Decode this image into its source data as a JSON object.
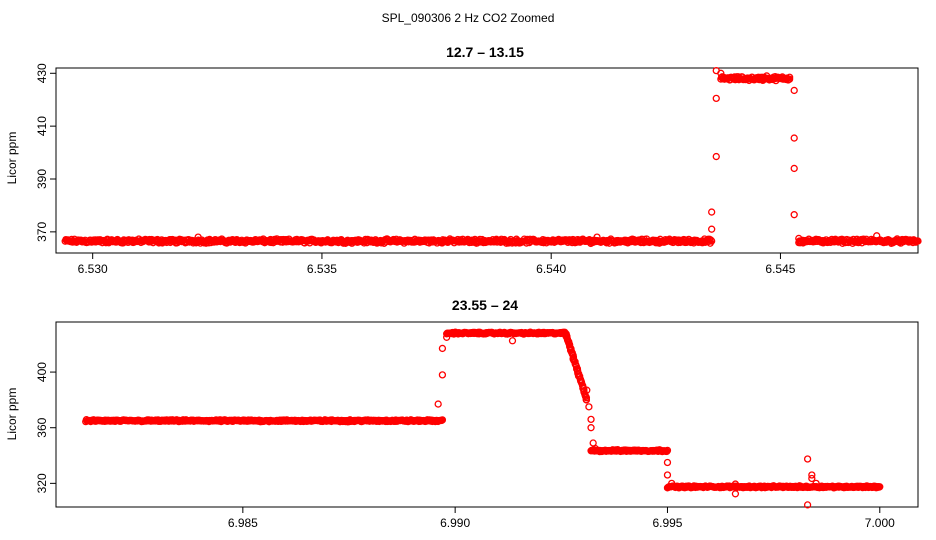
{
  "figure": {
    "title": "SPL_090306  2 Hz CO2 Zoomed",
    "point_color": "#ff0000"
  },
  "chart_data": [
    {
      "type": "scatter",
      "title": "12.7 – 13.15",
      "xlabel": "",
      "ylabel": "Licor ppm",
      "xlim": [
        6.5292,
        6.548
      ],
      "ylim": [
        362,
        432
      ],
      "xticks": [
        6.53,
        6.535,
        6.54,
        6.545
      ],
      "xtick_labels": [
        "6.530",
        "6.535",
        "6.540",
        "6.545"
      ],
      "yticks": [
        370,
        390,
        410,
        430
      ],
      "ytick_labels": [
        "370",
        "390",
        "410",
        "430"
      ],
      "grid": false,
      "marker": "open-circle",
      "segments": [
        {
          "x0": 6.5294,
          "x1": 6.5435,
          "y": 366.5,
          "noise": 0.9
        },
        {
          "x0": 6.5437,
          "x1": 6.5452,
          "y": 428.0,
          "noise": 0.9
        },
        {
          "x0": 6.5454,
          "x1": 6.548,
          "y": 366.5,
          "noise": 0.9
        }
      ],
      "points": [
        [
          6.5435,
          371.0
        ],
        [
          6.5435,
          377.5
        ],
        [
          6.5436,
          398.5
        ],
        [
          6.5436,
          420.5
        ],
        [
          6.5436,
          431.0
        ],
        [
          6.5437,
          430.0
        ],
        [
          6.5452,
          428.5
        ],
        [
          6.5453,
          423.5
        ],
        [
          6.5453,
          405.5
        ],
        [
          6.5453,
          394.0
        ],
        [
          6.5453,
          376.5
        ],
        [
          6.5454,
          367.5
        ],
        [
          6.5323,
          368.0
        ],
        [
          6.541,
          368.0
        ],
        [
          6.5471,
          368.5
        ],
        [
          6.5447,
          429.0
        ]
      ]
    },
    {
      "type": "scatter",
      "title": "23.55 – 24",
      "xlabel": "",
      "ylabel": "Licor ppm",
      "xlim": [
        6.9806,
        7.0009
      ],
      "ylim": [
        303,
        436
      ],
      "xticks": [
        6.985,
        6.99,
        6.995,
        7.0
      ],
      "xtick_labels": [
        "6.985",
        "6.990",
        "6.995",
        "7.000"
      ],
      "yticks": [
        320,
        360,
        400
      ],
      "ytick_labels": [
        "320",
        "360",
        "400"
      ],
      "grid": false,
      "marker": "open-circle",
      "segments": [
        {
          "x0": 6.9813,
          "x1": 6.9897,
          "y": 365.0,
          "noise": 0.8
        },
        {
          "x0": 6.9898,
          "x1": 6.9926,
          "y": 428.0,
          "noise": 0.8
        },
        {
          "x0": 6.9932,
          "x1": 6.995,
          "y": 343.5,
          "noise": 0.8
        },
        {
          "x0": 6.995,
          "x1": 7.0,
          "y": 317.5,
          "noise": 0.8
        }
      ],
      "ramp": {
        "x0": 6.9926,
        "x1": 6.9931,
        "y0": 428.0,
        "y1": 380.0,
        "n": 60
      },
      "points": [
        [
          6.9896,
          377.0
        ],
        [
          6.9897,
          398.0
        ],
        [
          6.9897,
          417.0
        ],
        [
          6.9898,
          425.0
        ],
        [
          6.99135,
          422.5
        ],
        [
          6.9931,
          387.0
        ],
        [
          6.99315,
          375.0
        ],
        [
          6.9932,
          366.0
        ],
        [
          6.9932,
          360.0
        ],
        [
          6.99325,
          349.0
        ],
        [
          6.9933,
          345.0
        ],
        [
          6.995,
          335.0
        ],
        [
          6.995,
          326.0
        ],
        [
          6.9951,
          320.0
        ],
        [
          6.9966,
          312.5
        ],
        [
          6.9966,
          319.5
        ],
        [
          6.9983,
          304.5
        ],
        [
          6.9983,
          337.5
        ],
        [
          6.9984,
          326.0
        ],
        [
          6.9984,
          323.5
        ],
        [
          6.9985,
          320.0
        ]
      ]
    }
  ]
}
